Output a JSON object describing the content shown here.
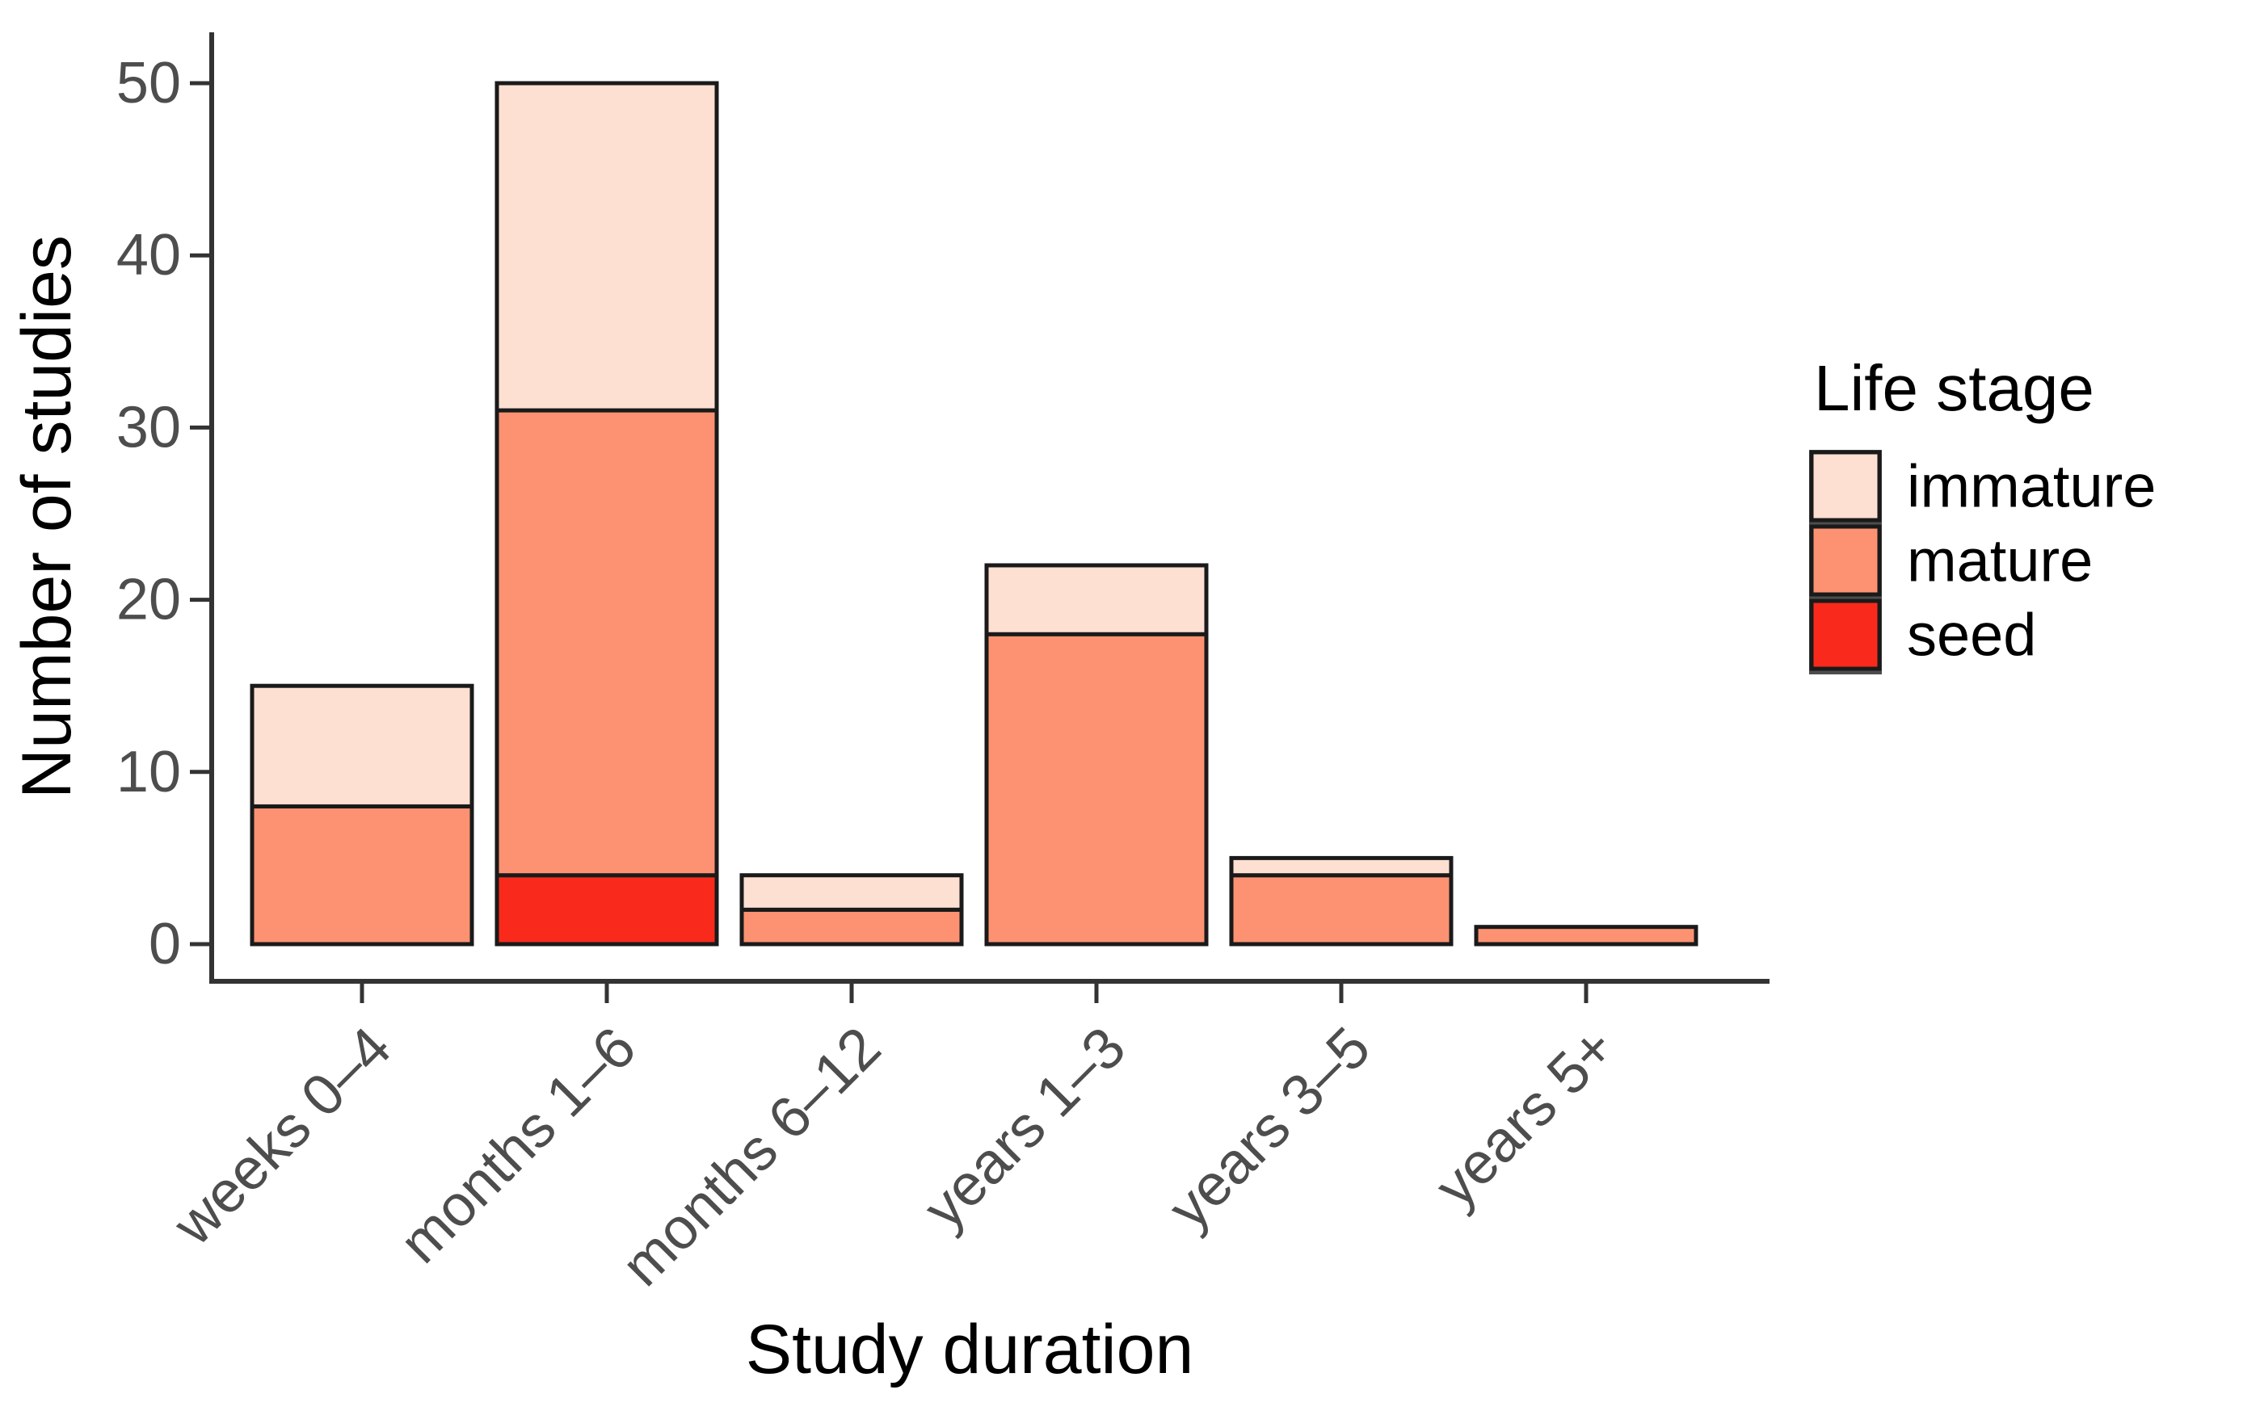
{
  "figure": {
    "background": "#FFFFFF"
  },
  "chart_data": {
    "type": "bar",
    "stacked": true,
    "title": "",
    "xlabel": "Study duration",
    "ylabel": "Number of studies",
    "categories": [
      "weeks 0–4",
      "months 1–6",
      "months 6–12",
      "years 1–3",
      "years 3–5",
      "years 5+"
    ],
    "series": [
      {
        "name": "seed",
        "color": "#F92A1C",
        "values": [
          0,
          4,
          0,
          0,
          0,
          0
        ]
      },
      {
        "name": "mature",
        "color": "#FC9272",
        "values": [
          8,
          27,
          2,
          18,
          4,
          1
        ]
      },
      {
        "name": "immature",
        "color": "#FDE0D2",
        "values": [
          7,
          19,
          2,
          4,
          1,
          0
        ]
      }
    ],
    "ylim": [
      0,
      50
    ],
    "yticks": [
      0,
      10,
      20,
      30,
      40,
      50
    ],
    "grid": false,
    "legend": {
      "title": "Life stage",
      "position": "right",
      "entries": [
        {
          "label": "immature",
          "color": "#FDE0D2"
        },
        {
          "label": "mature",
          "color": "#FC9272"
        },
        {
          "label": "seed",
          "color": "#F92A1C"
        }
      ]
    },
    "axis_color": "#333333",
    "tick_label_color": "#4D4D4D",
    "bar_border_color": "#1A1A1A",
    "text_color": "#000000"
  }
}
